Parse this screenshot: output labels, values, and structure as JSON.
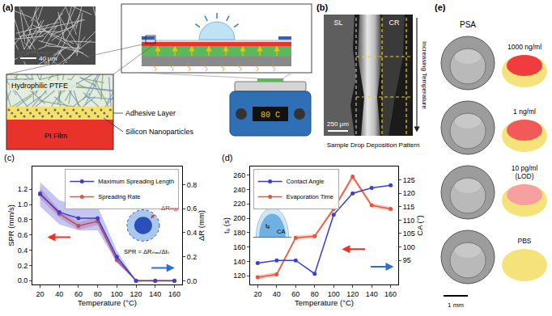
{
  "panels": {
    "a": {
      "label": "(a)",
      "scale_bar": "40 μm",
      "layers": [
        "Hydrophilic PTFE",
        "Adhesive Layer",
        "Silicon Nanoparticles",
        "PI Film"
      ],
      "hotplate_display": "80 C"
    },
    "b": {
      "label": "(b)",
      "regions": [
        "SL",
        "CR"
      ],
      "scale_bar": "250 μm",
      "arrow_label": "Increasing Temperature",
      "caption": "Sample Drop Deposition Pattern"
    },
    "e": {
      "label": "(e)",
      "title": "PSA",
      "scale_bar": "1 mm",
      "samples": [
        {
          "label": "1000 ng/ml",
          "color": "#f03c3c"
        },
        {
          "label": "1 ng/ml",
          "color": "#f25a5a"
        },
        {
          "label": "10 pg/ml",
          "note": "(LOD)",
          "color": "#f7a0a0"
        },
        {
          "label": "PBS"
        }
      ]
    }
  },
  "chart_data": [
    {
      "type": "line",
      "title": "(c)",
      "x": [
        20,
        40,
        60,
        80,
        100,
        120,
        140,
        160
      ],
      "xlabel": "Temperature (°C)",
      "xlim": [
        12,
        168
      ],
      "xticks": [
        20,
        40,
        60,
        80,
        100,
        120,
        140,
        160
      ],
      "ylabel": "SPR (mm/s)",
      "ylim": [
        -0.05,
        1.5
      ],
      "yticks": [
        {
          "value": 0,
          "label": "0.0"
        },
        0.2,
        0.4,
        0.6,
        0.8,
        {
          "value": 1,
          "label": "1.0"
        },
        1.2
      ],
      "y2label": "ΔR (mm)",
      "y2lim": [
        -0.03,
        0.95
      ],
      "y2ticks": [
        {
          "value": 0,
          "label": "0.0"
        },
        0.2,
        0.4,
        0.6,
        0.8
      ],
      "series": [
        {
          "name": "Spreading Rate",
          "color": "#e8553a",
          "marker": "circle",
          "values": [
            1.15,
            0.88,
            0.72,
            0.78,
            0.27,
            0,
            0,
            0
          ],
          "error": [
            0.07,
            0.05,
            0.05,
            0.05,
            0.03,
            0,
            0,
            0
          ]
        },
        {
          "name": "Maximum Spreading Length",
          "color": "#3a3fd6",
          "marker": "circle",
          "axis": "y2",
          "values": [
            0.72,
            0.57,
            0.52,
            0.52,
            0.2,
            0,
            0,
            0
          ],
          "error": [
            0.1,
            0.1,
            0.1,
            0.1,
            0.05,
            0,
            0,
            0
          ]
        }
      ],
      "legend": "upper right",
      "grid": false,
      "annotations": [
        "ΔRₘₐₓ",
        "SPR = ΔRₘₐₓ/Δtₛ"
      ]
    },
    {
      "type": "line",
      "title": "(d)",
      "x": [
        20,
        40,
        60,
        80,
        100,
        120,
        140,
        160
      ],
      "xlabel": "Temperature (°C)",
      "xlim": [
        12,
        168
      ],
      "xticks": [
        20,
        40,
        60,
        80,
        100,
        120,
        140,
        160
      ],
      "ylabel": "tₑ (s)",
      "ylim": [
        108,
        272
      ],
      "yticks": [
        120,
        140,
        160,
        180,
        200,
        220,
        240,
        260
      ],
      "y2label": "CA (°)",
      "y2lim": [
        86,
        130
      ],
      "y2ticks": [
        95,
        100,
        105,
        110,
        115,
        120,
        125
      ],
      "series": [
        {
          "name": "Evaporation Time",
          "color": "#e8553a",
          "marker": "circle",
          "values": [
            118,
            122,
            173,
            175,
            213,
            258,
            218,
            213
          ],
          "error": [
            3,
            3,
            3,
            3,
            3,
            4,
            3,
            3
          ]
        },
        {
          "name": "Contact Angle",
          "color": "#3a3fd6",
          "marker": "circle",
          "axis": "y2",
          "values": [
            94,
            95,
            95,
            90,
            112,
            120,
            122,
            123
          ]
        }
      ],
      "legend": "upper left",
      "grid": false,
      "annotations": [
        "tₑ",
        "CA"
      ]
    }
  ]
}
